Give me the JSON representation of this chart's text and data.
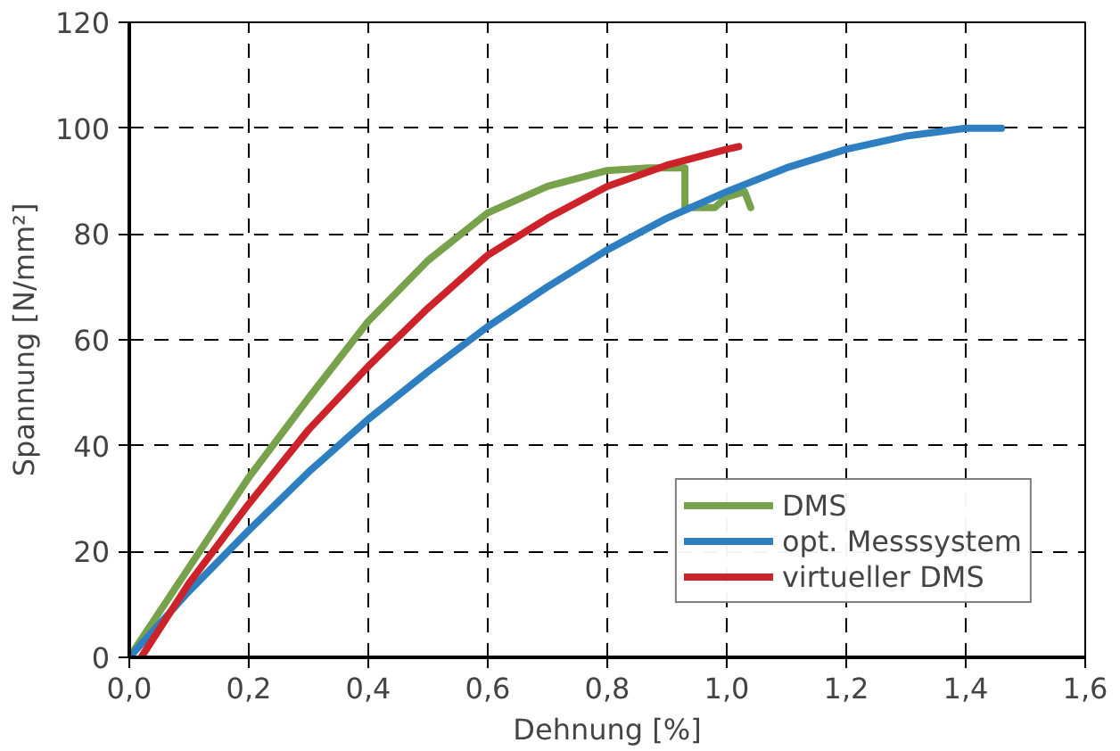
{
  "chart_data": {
    "type": "line",
    "xlabel": "Dehnung [%]",
    "ylabel": "Spannung [N/mm²]",
    "xlim": [
      0,
      1.6
    ],
    "ylim": [
      0,
      120
    ],
    "xticks": [
      {
        "value": 0,
        "label": "0,0"
      },
      {
        "value": 0.2,
        "label": "0,2"
      },
      {
        "value": 0.4,
        "label": "0,4"
      },
      {
        "value": 0.6,
        "label": "0,6"
      },
      {
        "value": 0.8,
        "label": "0,8"
      },
      {
        "value": 1,
        "label": "1,0"
      },
      {
        "value": 1.2,
        "label": "1,2"
      },
      {
        "value": 1.4,
        "label": "1,4"
      },
      {
        "value": 1.6,
        "label": "1,6"
      }
    ],
    "yticks": [
      0,
      20,
      40,
      60,
      80,
      100,
      120
    ],
    "grid": true,
    "legend": "bottom right",
    "line_style": "solid",
    "marker": "none",
    "series": [
      {
        "name": "DMS",
        "color": "#77a14b",
        "x": [
          0,
          0.1,
          0.2,
          0.3,
          0.4,
          0.5,
          0.6,
          0.7,
          0.8,
          0.87,
          0.93,
          0.93,
          0.98,
          1.0,
          1.03,
          1.04
        ],
        "values": [
          0,
          17,
          34,
          49,
          63.5,
          75,
          84,
          89,
          92,
          92.5,
          92.5,
          85,
          85,
          87,
          88,
          85
        ]
      },
      {
        "name": "opt. Messsystem",
        "color": "#2d7fc1",
        "x": [
          0,
          0.1,
          0.2,
          0.3,
          0.4,
          0.5,
          0.6,
          0.7,
          0.8,
          0.9,
          1.0,
          1.1,
          1.2,
          1.3,
          1.4,
          1.46
        ],
        "values": [
          0,
          12.5,
          24,
          35,
          45,
          54,
          62.5,
          70,
          77,
          83,
          88,
          92.5,
          96,
          98.5,
          100,
          100
        ]
      },
      {
        "name": "virtueller DMS",
        "color": "#cc2229",
        "x": [
          0.02,
          0.1,
          0.2,
          0.3,
          0.4,
          0.5,
          0.6,
          0.7,
          0.8,
          0.9,
          1.0,
          1.02
        ],
        "values": [
          0,
          14,
          29,
          43,
          55,
          66,
          76,
          83,
          89,
          93,
          96,
          96.5
        ]
      }
    ]
  }
}
